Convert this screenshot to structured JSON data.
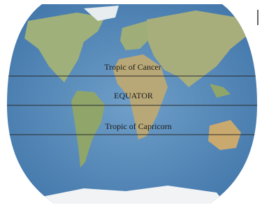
{
  "map": {
    "lines": [
      {
        "label": "Tropic of Cancer"
      },
      {
        "label": "EQUATOR"
      },
      {
        "label": "Tropic of Capricorn"
      }
    ]
  }
}
